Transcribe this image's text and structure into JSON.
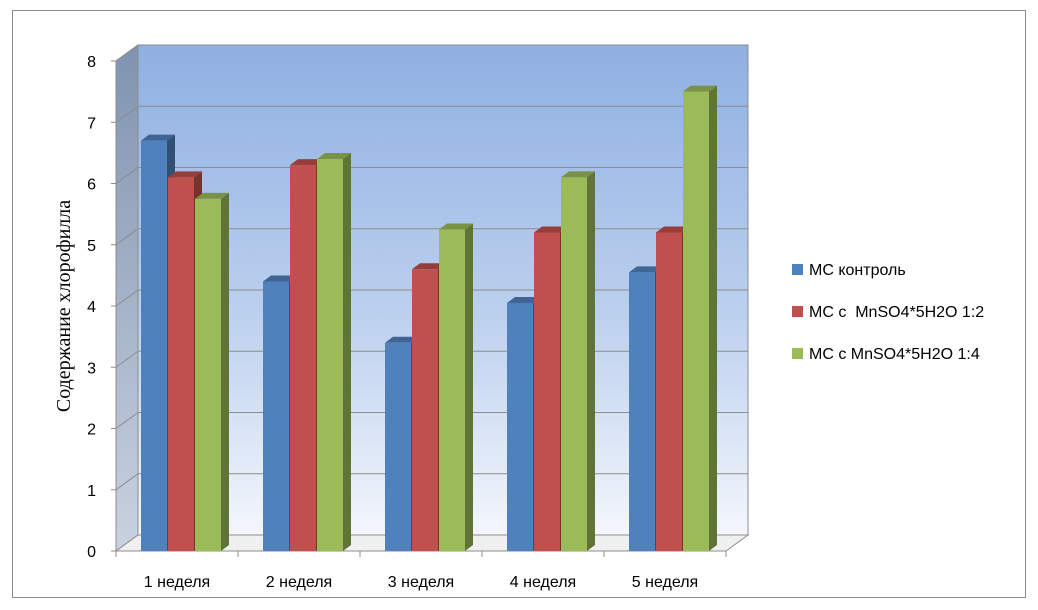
{
  "chart_data": {
    "type": "bar",
    "title": "",
    "xlabel": "",
    "ylabel": "Содержание хлорофилла",
    "ylim": [
      0,
      8
    ],
    "yticks": [
      "0",
      "1",
      "2",
      "3",
      "4",
      "5",
      "6",
      "7",
      "8"
    ],
    "grid": true,
    "legend": "right",
    "categories": [
      "1 неделя",
      "2 неделя",
      "3 неделя",
      "4 неделя",
      "5 неделя"
    ],
    "series": [
      {
        "name": "MC контроль",
        "color": "#4f81bd",
        "values": [
          6.7,
          4.4,
          3.4,
          4.05,
          4.55
        ]
      },
      {
        "name": "MC с  MnSO4*5H2O 1:2",
        "color": "#c0504d",
        "values": [
          6.1,
          6.3,
          4.6,
          5.2,
          5.2
        ]
      },
      {
        "name": "MC с MnSO4*5H2O 1:4",
        "color": "#9bbb59",
        "values": [
          5.75,
          6.4,
          5.25,
          6.1,
          7.5
        ]
      }
    ]
  }
}
